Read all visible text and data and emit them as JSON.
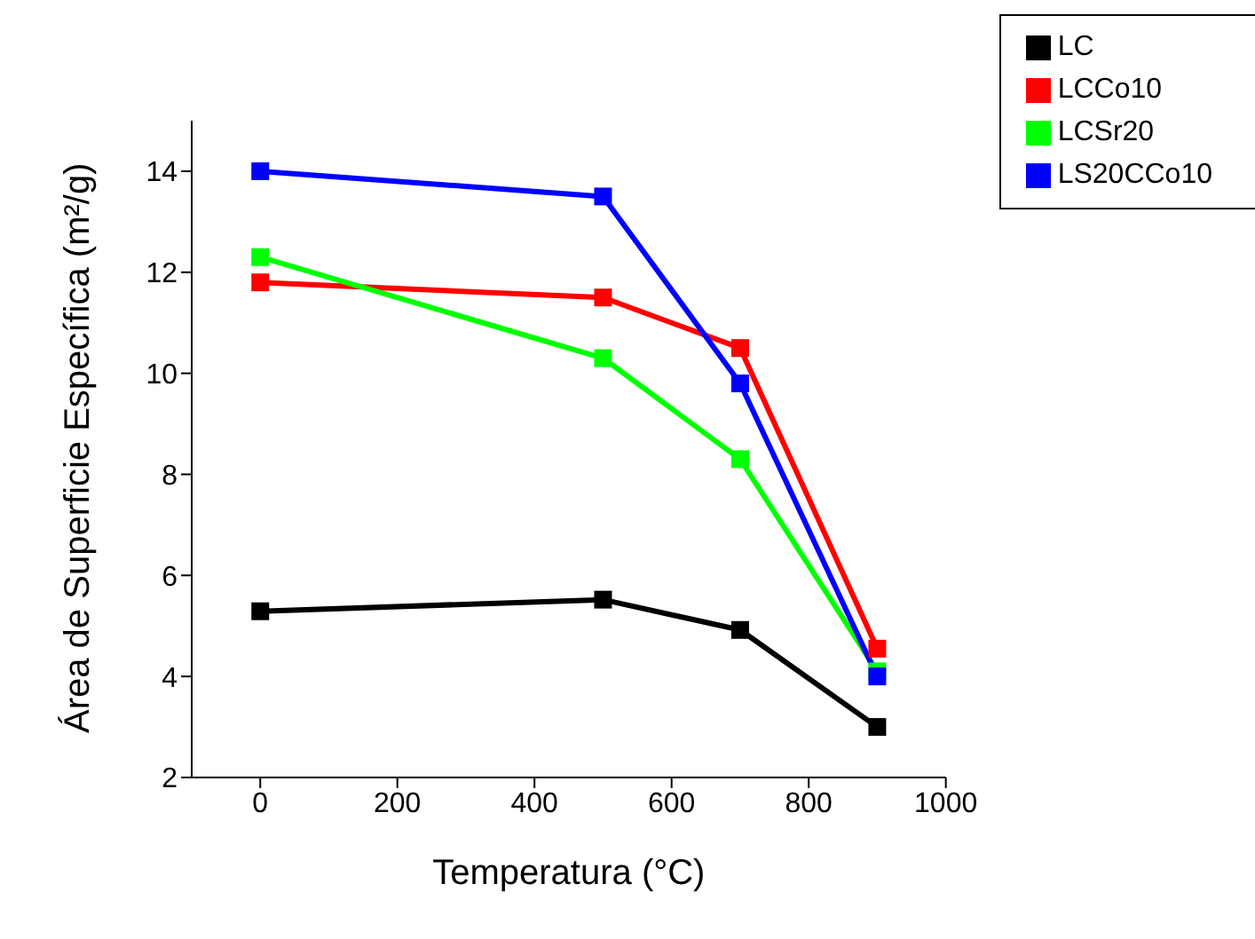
{
  "chart_data": {
    "type": "line",
    "xlabel": "Temperatura (°C)",
    "ylabel": "Área de Superficie Específica (m²/g)",
    "x": [
      0,
      500,
      700,
      900
    ],
    "series": [
      {
        "name": "LC",
        "color": "#000000",
        "values": [
          5.29,
          5.52,
          4.92,
          3.0
        ]
      },
      {
        "name": "LCCo10",
        "color": "#ff0000",
        "values": [
          11.8,
          11.5,
          10.5,
          4.55
        ]
      },
      {
        "name": "LCSr20",
        "color": "#00ff00",
        "values": [
          12.3,
          10.3,
          8.3,
          4.1
        ]
      },
      {
        "name": "LS20CCo10",
        "color": "#0000ff",
        "values": [
          14.0,
          13.5,
          9.8,
          4.0
        ]
      }
    ],
    "xlim": [
      -100,
      1000
    ],
    "xticks": [
      0,
      200,
      400,
      600,
      800,
      1000
    ],
    "ylim": [
      2,
      15
    ],
    "yticks": [
      2,
      4,
      6,
      8,
      10,
      12,
      14
    ],
    "grid": false,
    "legend": "top right",
    "marker": "square",
    "line_style": "solid"
  }
}
